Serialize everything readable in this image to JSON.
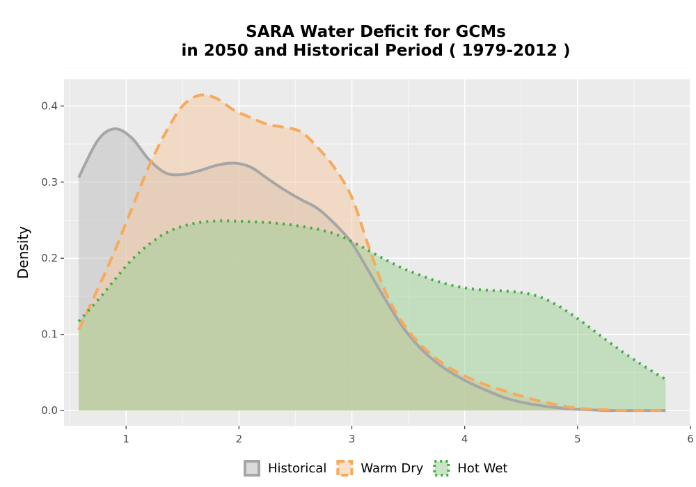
{
  "chart_data": {
    "type": "area",
    "title_lines": [
      "SARA  Water Deficit for GCMs",
      "in 2050 and Historical Period ( 1979-2012 )"
    ],
    "xlabel": "",
    "ylabel": "Density",
    "xlim": [
      0.45,
      6.0
    ],
    "ylim": [
      -0.02,
      0.435
    ],
    "x_ticks": [
      1,
      2,
      3,
      4,
      5,
      6
    ],
    "y_ticks": [
      0.0,
      0.1,
      0.2,
      0.3,
      0.4
    ],
    "y_tick_labels": [
      "0.0",
      "0.1",
      "0.2",
      "0.3",
      "0.4"
    ],
    "grid": true,
    "legend_position": "bottom",
    "x": [
      0.58,
      0.75,
      0.9,
      1.05,
      1.2,
      1.35,
      1.5,
      1.65,
      1.8,
      1.95,
      2.1,
      2.25,
      2.4,
      2.55,
      2.7,
      2.85,
      3.0,
      3.15,
      3.3,
      3.45,
      3.6,
      3.75,
      3.9,
      4.05,
      4.2,
      4.35,
      4.5,
      4.65,
      4.8,
      4.95,
      5.1,
      5.25,
      5.4,
      5.55,
      5.7,
      5.78
    ],
    "series": [
      {
        "name": "Historical",
        "color": "#a6a6a6",
        "fill": "#bdbdbd",
        "dash": "solid",
        "values": [
          0.306,
          0.355,
          0.37,
          0.358,
          0.33,
          0.312,
          0.31,
          0.315,
          0.322,
          0.325,
          0.32,
          0.305,
          0.29,
          0.277,
          0.265,
          0.245,
          0.22,
          0.183,
          0.145,
          0.11,
          0.083,
          0.063,
          0.048,
          0.036,
          0.026,
          0.017,
          0.011,
          0.007,
          0.004,
          0.002,
          0.001,
          0.0,
          0.0,
          0.0,
          0.0,
          0.0
        ]
      },
      {
        "name": "Warm Dry",
        "color": "#f7a95c",
        "fill": "#f6c7a0",
        "dash": "dashed",
        "values": [
          0.106,
          0.16,
          0.21,
          0.265,
          0.32,
          0.365,
          0.4,
          0.414,
          0.41,
          0.395,
          0.385,
          0.376,
          0.372,
          0.366,
          0.345,
          0.318,
          0.28,
          0.215,
          0.155,
          0.115,
          0.088,
          0.068,
          0.053,
          0.042,
          0.033,
          0.026,
          0.019,
          0.013,
          0.008,
          0.004,
          0.002,
          0.001,
          0.0,
          0.0,
          0.0,
          0.0
        ]
      },
      {
        "name": "Hot Wet",
        "color": "#46ab46",
        "fill": "#9ccf93",
        "dash": "dotted",
        "values": [
          0.117,
          0.145,
          0.172,
          0.198,
          0.218,
          0.233,
          0.242,
          0.247,
          0.249,
          0.249,
          0.248,
          0.247,
          0.245,
          0.242,
          0.238,
          0.232,
          0.222,
          0.21,
          0.198,
          0.187,
          0.178,
          0.17,
          0.164,
          0.16,
          0.158,
          0.157,
          0.155,
          0.15,
          0.14,
          0.126,
          0.11,
          0.093,
          0.077,
          0.062,
          0.048,
          0.041
        ]
      }
    ]
  }
}
